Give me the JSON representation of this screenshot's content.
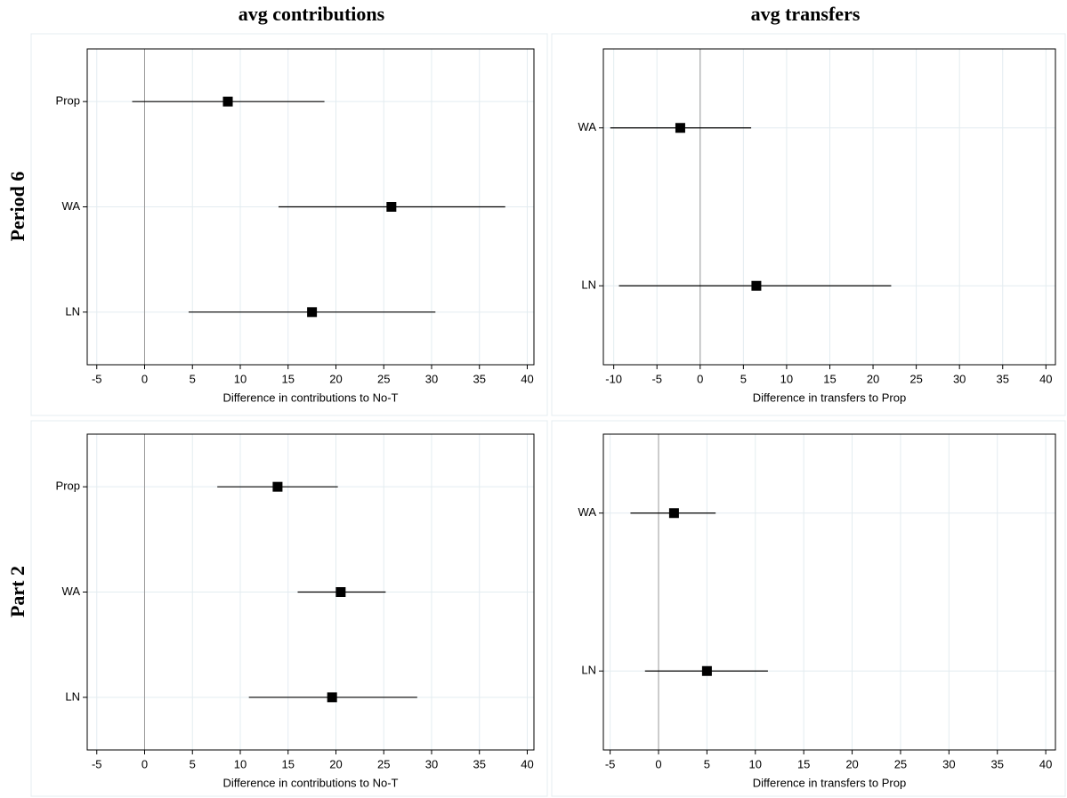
{
  "column_titles": [
    "avg contributions",
    "avg transfers"
  ],
  "row_titles": [
    "Period 6",
    "Part 2"
  ],
  "chart_data": [
    {
      "type": "coefplot",
      "x_label": "Difference in contributions to No-T",
      "categories": [
        "Prop",
        "WA",
        "LN"
      ],
      "values": [
        8.7,
        25.8,
        17.5
      ],
      "ci_low": [
        -1.3,
        14.0,
        4.6
      ],
      "ci_high": [
        18.8,
        37.7,
        30.4
      ],
      "xlim": [
        -6,
        40.7
      ],
      "xticks": [
        -5,
        0,
        5,
        10,
        15,
        20,
        25,
        30,
        35,
        40
      ],
      "xline": 0,
      "grid": true,
      "color": "#000000"
    },
    {
      "type": "coefplot",
      "x_label": "Difference in transfers to Prop",
      "categories": [
        "WA",
        "LN"
      ],
      "values": [
        -2.3,
        6.5
      ],
      "ci_low": [
        -10.4,
        -9.4
      ],
      "ci_high": [
        5.9,
        22.1
      ],
      "xlim": [
        -11.2,
        41.1
      ],
      "xticks": [
        -10,
        -5,
        0,
        5,
        10,
        15,
        20,
        25,
        30,
        35,
        40
      ],
      "xline": 0,
      "grid": true,
      "color": "#000000"
    },
    {
      "type": "coefplot",
      "x_label": "Difference in contributions to No-T",
      "categories": [
        "Prop",
        "WA",
        "LN"
      ],
      "values": [
        13.9,
        20.5,
        19.6
      ],
      "ci_low": [
        7.6,
        16.0,
        10.9
      ],
      "ci_high": [
        20.2,
        25.2,
        28.5
      ],
      "xlim": [
        -6,
        40.7
      ],
      "xticks": [
        -5,
        0,
        5,
        10,
        15,
        20,
        25,
        30,
        35,
        40
      ],
      "xline": 0,
      "grid": true,
      "color": "#000000"
    },
    {
      "type": "coefplot",
      "x_label": "Difference in transfers to Prop",
      "categories": [
        "WA",
        "LN"
      ],
      "values": [
        1.6,
        5.0
      ],
      "ci_low": [
        -2.9,
        -1.4
      ],
      "ci_high": [
        5.9,
        11.3
      ],
      "xlim": [
        -5.7,
        41.0
      ],
      "xticks": [
        -5,
        0,
        5,
        10,
        15,
        20,
        25,
        30,
        35,
        40
      ],
      "xline": 0,
      "grid": true,
      "color": "#000000"
    }
  ]
}
